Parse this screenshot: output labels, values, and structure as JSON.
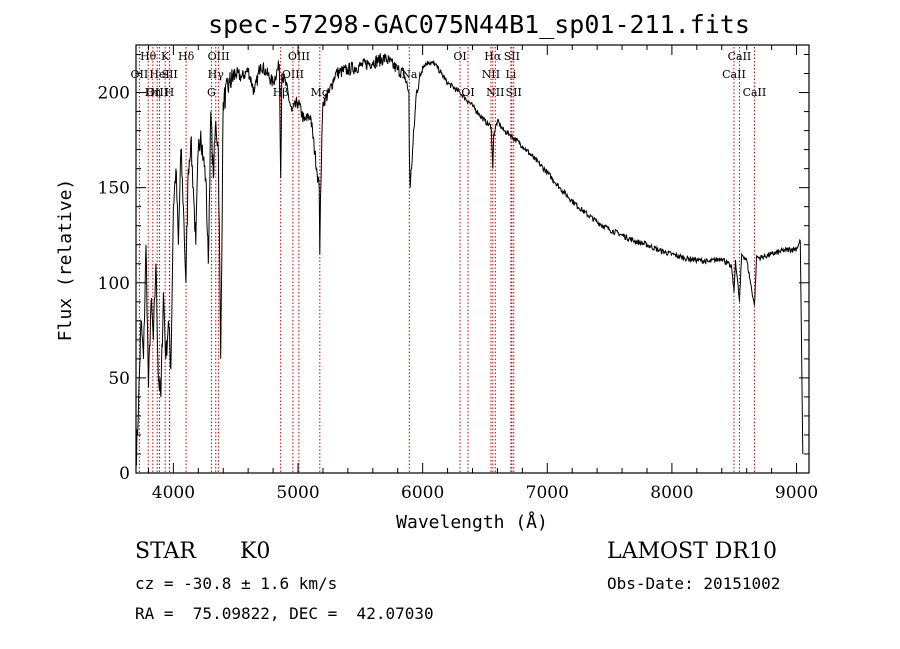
{
  "title": "spec-57298-GAC075N44B1_sp01-211.fits",
  "chart_data": {
    "type": "line",
    "title": "spec-57298-GAC075N44B1_sp01-211.fits",
    "xlabel": "Wavelength (Å)",
    "ylabel": "Flux (relative)",
    "xlim": [
      3700,
      9100
    ],
    "ylim": [
      0,
      225
    ],
    "x_ticks": [
      4000,
      5000,
      6000,
      7000,
      8000,
      9000
    ],
    "y_ticks": [
      0,
      50,
      100,
      150,
      200
    ],
    "grid": false,
    "series": [
      {
        "x": [
          3700,
          3720,
          3740,
          3760,
          3780,
          3800,
          3820,
          3840,
          3860,
          3880,
          3900,
          3920,
          3940,
          3960,
          3980,
          4000,
          4020,
          4040,
          4060,
          4080,
          4100,
          4120,
          4140,
          4160,
          4180,
          4200,
          4220,
          4240,
          4260,
          4280,
          4300,
          4320,
          4340,
          4360,
          4380,
          4400,
          4450,
          4500,
          4550,
          4600,
          4650,
          4700,
          4750,
          4800,
          4850,
          4861,
          4870,
          4900,
          4950,
          5000,
          5050,
          5100,
          5150,
          5170,
          5175,
          5180,
          5200,
          5250,
          5300,
          5400,
          5500,
          5600,
          5700,
          5800,
          5850,
          5890,
          5893,
          5900,
          5950,
          6000,
          6050,
          6100,
          6150,
          6200,
          6300,
          6400,
          6500,
          6550,
          6563,
          6570,
          6600,
          6650,
          6700,
          6800,
          6900,
          7000,
          7100,
          7200,
          7300,
          7400,
          7500,
          7600,
          7700,
          7800,
          7900,
          8000,
          8100,
          8200,
          8300,
          8400,
          8480,
          8498,
          8510,
          8542,
          8560,
          8600,
          8662,
          8680,
          8700,
          8800,
          8900,
          9000,
          9030,
          9050
        ],
        "y": [
          5,
          35,
          80,
          60,
          120,
          45,
          90,
          70,
          110,
          50,
          40,
          95,
          60,
          80,
          55,
          140,
          160,
          120,
          170,
          140,
          100,
          160,
          175,
          150,
          120,
          170,
          180,
          165,
          155,
          110,
          190,
          155,
          185,
          170,
          60,
          195,
          205,
          210,
          208,
          212,
          200,
          215,
          210,
          205,
          215,
          155,
          210,
          205,
          190,
          195,
          185,
          188,
          160,
          150,
          115,
          145,
          195,
          200,
          210,
          212,
          214,
          216,
          218,
          212,
          210,
          200,
          170,
          150,
          200,
          214,
          216,
          215,
          210,
          205,
          200,
          193,
          185,
          182,
          160,
          178,
          185,
          180,
          178,
          172,
          165,
          158,
          150,
          143,
          137,
          132,
          128,
          125,
          122,
          120,
          117,
          115,
          113,
          112,
          111,
          113,
          108,
          95,
          112,
          90,
          115,
          112,
          88,
          114,
          113,
          115,
          117,
          118,
          122,
          10
        ]
      }
    ],
    "spectral_lines": [
      {
        "label": "Hθ",
        "x": 3798,
        "row": 0
      },
      {
        "label": "OII",
        "x": 3727,
        "row": 1
      },
      {
        "label": "Hη",
        "x": 3835,
        "row": 2
      },
      {
        "label": "OIII",
        "x": 3870,
        "row": 2
      },
      {
        "label": "HeI",
        "x": 3889,
        "row": 1
      },
      {
        "label": "K",
        "x": 3934,
        "row": 0
      },
      {
        "label": "SII",
        "x": 3970,
        "row": 1
      },
      {
        "label": "H",
        "x": 3968,
        "row": 2
      },
      {
        "label": "Hδ",
        "x": 4102,
        "row": 0
      },
      {
        "label": "G",
        "x": 4305,
        "row": 2
      },
      {
        "label": "OIII",
        "x": 4363,
        "row": 0
      },
      {
        "label": "Hγ",
        "x": 4340,
        "row": 1
      },
      {
        "label": "Hβ",
        "x": 4861,
        "row": 2
      },
      {
        "label": "OIII",
        "x": 5007,
        "row": 0
      },
      {
        "label": "OIII",
        "x": 4959,
        "row": 1
      },
      {
        "label": "Mg",
        "x": 5175,
        "row": 2
      },
      {
        "label": "Na",
        "x": 5893,
        "row": 1
      },
      {
        "label": "OI",
        "x": 6300,
        "row": 0
      },
      {
        "label": "OI",
        "x": 6364,
        "row": 2
      },
      {
        "label": "NII",
        "x": 6548,
        "row": 1
      },
      {
        "label": "Hα",
        "x": 6563,
        "row": 0
      },
      {
        "label": "NII",
        "x": 6583,
        "row": 2
      },
      {
        "label": "SII",
        "x": 6716,
        "row": 0
      },
      {
        "label": "Li",
        "x": 6708,
        "row": 1
      },
      {
        "label": "SII",
        "x": 6731,
        "row": 2
      },
      {
        "label": "CaII",
        "x": 8542,
        "row": 0
      },
      {
        "label": "CaII",
        "x": 8498,
        "row": 1
      },
      {
        "label": "CaII",
        "x": 8662,
        "row": 2
      }
    ],
    "line_color": "#cc0000"
  },
  "info": {
    "class": "STAR",
    "subclass": "K0",
    "cz": "cz = -30.8 ± 1.6 km/s",
    "radec": "RA =  75.09822, DEC =  42.07030",
    "survey": "LAMOST DR10",
    "obsdate": "Obs-Date: 20151002"
  }
}
